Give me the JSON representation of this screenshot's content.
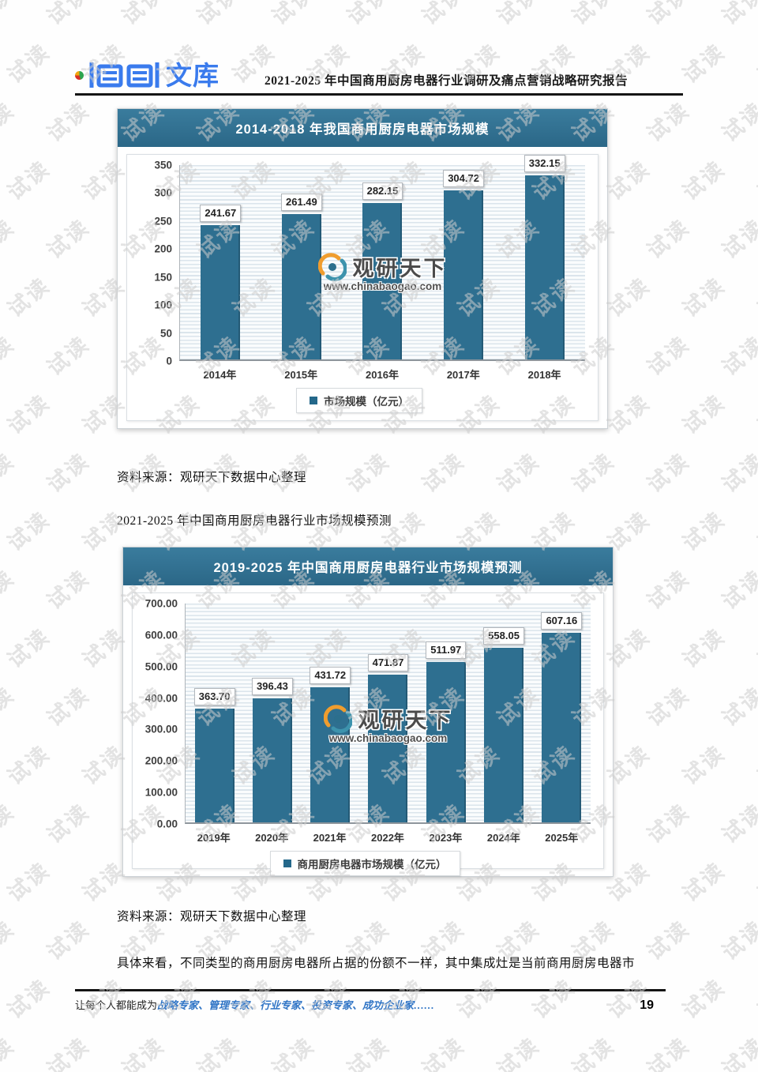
{
  "page": {
    "watermark_text": "试读",
    "header": {
      "logo_text": "文库",
      "report_title": "2021-2025 年中国商用厨房电器行业调研及痛点营销战略研究报告"
    },
    "source_note_1": "资料来源：观研天下数据中心整理",
    "section_heading": "2021-2025 年中国商用厨房电器行业市场规模预测",
    "source_note_2": "资料来源：观研天下数据中心整理",
    "paragraph": "具体来看，不同类型的商用厨房电器所占据的份额不一样，其中集成灶是当前商用厨房电器市",
    "footer": {
      "slogan_prefix": "让每个人都能成为",
      "slogan_highlight": "战略专家、管理专家、行业专家、投资专家、成功企业家……",
      "page_number": "19"
    }
  },
  "brand_watermark": {
    "name": "观研天下",
    "url": "www.chinabaogao.com"
  },
  "colors": {
    "bar_teal": "#2e6f90",
    "title_bar_teal": "#2f6f8f",
    "logo_blue": "#3a7bed",
    "footer_blue": "#2f74c5"
  },
  "chart_data": [
    {
      "type": "bar",
      "title": "2014-2018 年我国商用厨房电器市场规模",
      "categories": [
        "2014年",
        "2015年",
        "2016年",
        "2017年",
        "2018年"
      ],
      "values": [
        241.67,
        261.49,
        282.15,
        304.72,
        332.15
      ],
      "value_labels": [
        "241.67",
        "261.49",
        "282.15",
        "304.72",
        "332.15"
      ],
      "legend": "市场规模（亿元）",
      "ylim": [
        0,
        350
      ],
      "ytick_labels": [
        "0",
        "50",
        "100",
        "150",
        "200",
        "250",
        "300",
        "350"
      ],
      "grid": "horizontal-pinstripe",
      "legend_position": "bottom"
    },
    {
      "type": "bar",
      "title": "2019-2025 年中国商用厨房电器行业市场规模预测",
      "categories": [
        "2019年",
        "2020年",
        "2021年",
        "2022年",
        "2023年",
        "2024年",
        "2025年"
      ],
      "values": [
        363.7,
        396.43,
        431.72,
        471.87,
        511.97,
        558.05,
        607.16
      ],
      "value_labels": [
        "363.70",
        "396.43",
        "431.72",
        "471.87",
        "511.97",
        "558.05",
        "607.16"
      ],
      "legend": "商用厨房电器市场规模（亿元）",
      "ylim": [
        0,
        700
      ],
      "ytick_labels": [
        "0.00",
        "100.00",
        "200.00",
        "300.00",
        "400.00",
        "500.00",
        "600.00",
        "700.00"
      ],
      "grid": "horizontal-pinstripe",
      "legend_position": "bottom"
    }
  ]
}
